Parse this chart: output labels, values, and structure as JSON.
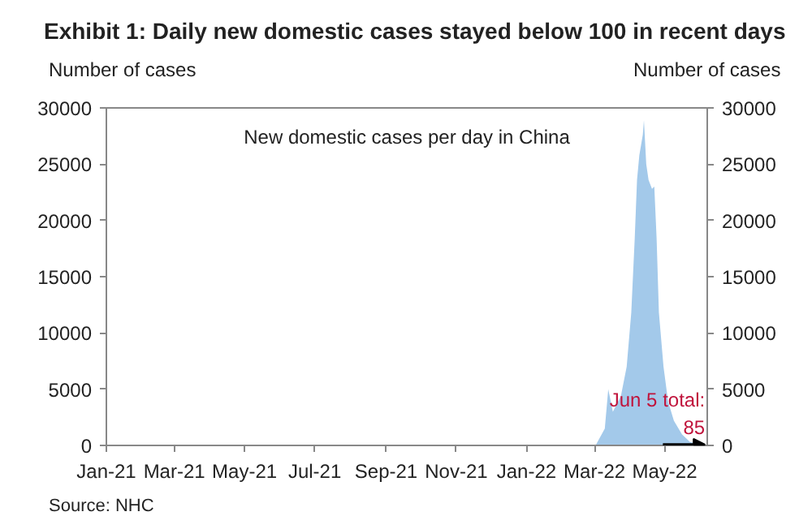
{
  "chart_data": {
    "type": "area",
    "title": "Exhibit 1: Daily new domestic cases stayed below 100 in recent days",
    "ylabel": "Number of cases",
    "y2label": "Number of cases",
    "annotations": [
      "New domestic cases per day in China",
      {
        "text": "Jun 5 total:\n85",
        "x": "2022-06-05",
        "y": 85
      },
      "Source: NHC"
    ],
    "x": [
      "2021-01-01",
      "2021-03-01",
      "2021-06-01",
      "2021-09-01",
      "2021-12-01",
      "2022-02-01",
      "2022-03-02",
      "2022-03-10",
      "2022-03-13",
      "2022-03-17",
      "2022-03-24",
      "2022-03-29",
      "2022-04-02",
      "2022-04-05",
      "2022-04-07",
      "2022-04-09",
      "2022-04-12",
      "2022-04-13",
      "2022-04-15",
      "2022-04-17",
      "2022-04-20",
      "2022-04-22",
      "2022-04-24",
      "2022-04-26",
      "2022-04-30",
      "2022-05-04",
      "2022-05-09",
      "2022-05-16",
      "2022-05-23",
      "2022-05-31",
      "2022-06-05"
    ],
    "series": [
      {
        "color": "#a3c9ea",
        "values": [
          0,
          0,
          0,
          0,
          0,
          0,
          0,
          1500,
          5000,
          3000,
          4400,
          7000,
          11800,
          18400,
          23600,
          25800,
          27600,
          28900,
          25000,
          23600,
          22800,
          23000,
          18400,
          11800,
          7000,
          3900,
          2200,
          1000,
          300,
          100,
          85
        ]
      }
    ],
    "xlim": [
      "2021-01-01",
      "2022-06-07"
    ],
    "xticks": [
      {
        "value": "2021-01-01",
        "label": "Jan-21"
      },
      {
        "value": "2021-03-01",
        "label": "Mar-21"
      },
      {
        "value": "2021-05-01",
        "label": "May-21"
      },
      {
        "value": "2021-07-01",
        "label": "Jul-21"
      },
      {
        "value": "2021-09-01",
        "label": "Sep-21"
      },
      {
        "value": "2021-11-01",
        "label": "Nov-21"
      },
      {
        "value": "2022-01-01",
        "label": "Jan-22"
      },
      {
        "value": "2022-03-01",
        "label": "Mar-22"
      },
      {
        "value": "2022-05-01",
        "label": "May-22"
      }
    ],
    "ylim": [
      0,
      30000
    ],
    "yticks": [
      0,
      5000,
      10000,
      15000,
      20000,
      25000,
      30000
    ],
    "y2lim": [
      0,
      30000
    ],
    "y2ticks": [
      0,
      5000,
      10000,
      15000,
      20000,
      25000,
      30000
    ],
    "grid": false
  }
}
